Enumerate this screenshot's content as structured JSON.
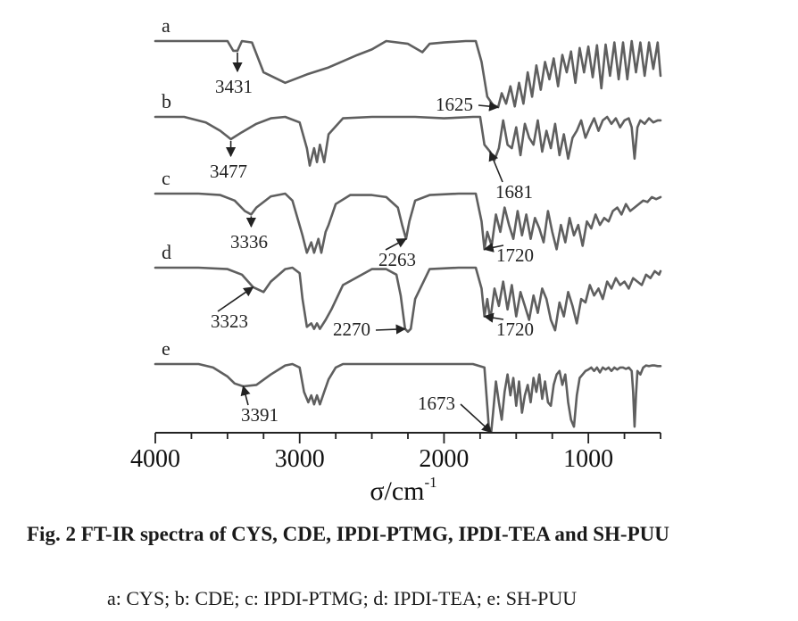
{
  "chart_data": {
    "type": "line",
    "xlabel": "σ/cm",
    "xlabel_superscript": "-1",
    "x_reversed": true,
    "xlim": [
      4000,
      500
    ],
    "x_ticks": [
      4000,
      3000,
      2000,
      1000
    ],
    "x_minor_step": 250,
    "y_axis_shown": false,
    "series": [
      {
        "name": "a",
        "baseline_offset": 4,
        "x": [
          4000,
          3600,
          3500,
          3460,
          3431,
          3400,
          3330,
          3250,
          3100,
          2950,
          2800,
          2600,
          2500,
          2400,
          2250,
          2150,
          2100,
          2000,
          1850,
          1780,
          1740,
          1700,
          1660,
          1625,
          1600,
          1570,
          1540,
          1510,
          1480,
          1450,
          1420,
          1390,
          1360,
          1330,
          1300,
          1270,
          1240,
          1210,
          1180,
          1150,
          1120,
          1090,
          1060,
          1030,
          1000,
          970,
          940,
          910,
          880,
          850,
          820,
          790,
          760,
          730,
          700,
          670,
          640,
          610,
          580,
          550,
          520,
          500
        ],
        "y": [
          1.0,
          1.0,
          1.0,
          0.86,
          0.86,
          1.0,
          0.98,
          0.55,
          0.4,
          0.52,
          0.62,
          0.8,
          0.88,
          1.0,
          0.96,
          0.84,
          0.96,
          0.98,
          1.0,
          1.0,
          0.7,
          0.2,
          0.08,
          0.05,
          0.25,
          0.1,
          0.35,
          0.06,
          0.4,
          0.1,
          0.55,
          0.2,
          0.65,
          0.3,
          0.7,
          0.45,
          0.75,
          0.35,
          0.8,
          0.55,
          0.85,
          0.4,
          0.9,
          0.55,
          0.92,
          0.48,
          0.94,
          0.32,
          0.95,
          0.5,
          0.98,
          0.45,
          0.98,
          0.45,
          1.0,
          0.55,
          0.98,
          0.5,
          0.98,
          0.6,
          0.98,
          0.5
        ]
      },
      {
        "name": "b",
        "baseline_offset": 3,
        "x": [
          4000,
          3800,
          3650,
          3550,
          3477,
          3400,
          3300,
          3200,
          3100,
          3000,
          2950,
          2930,
          2900,
          2880,
          2860,
          2830,
          2800,
          2700,
          2500,
          2200,
          2000,
          1800,
          1750,
          1720,
          1681,
          1650,
          1620,
          1590,
          1560,
          1530,
          1500,
          1470,
          1440,
          1410,
          1380,
          1350,
          1320,
          1290,
          1260,
          1230,
          1200,
          1170,
          1140,
          1110,
          1080,
          1050,
          1020,
          990,
          960,
          930,
          900,
          870,
          840,
          810,
          780,
          750,
          720,
          700,
          680,
          660,
          640,
          610,
          580,
          550,
          520,
          500
        ],
        "y": [
          1.0,
          1.0,
          0.92,
          0.8,
          0.68,
          0.78,
          0.9,
          0.98,
          1.0,
          0.92,
          0.55,
          0.3,
          0.55,
          0.35,
          0.6,
          0.35,
          0.75,
          0.98,
          1.0,
          1.0,
          0.98,
          1.0,
          1.0,
          0.6,
          0.5,
          0.38,
          0.55,
          0.95,
          0.6,
          0.55,
          0.85,
          0.45,
          0.9,
          0.7,
          0.6,
          0.95,
          0.5,
          0.8,
          0.55,
          0.9,
          0.45,
          0.75,
          0.4,
          0.7,
          0.8,
          0.95,
          0.7,
          0.85,
          0.98,
          0.8,
          0.95,
          1.0,
          0.9,
          0.98,
          0.85,
          0.95,
          0.98,
          0.85,
          0.4,
          0.85,
          0.95,
          0.9,
          0.98,
          0.92,
          0.95,
          0.95
        ]
      },
      {
        "name": "c",
        "baseline_offset": 2,
        "x": [
          4000,
          3700,
          3550,
          3450,
          3380,
          3336,
          3300,
          3200,
          3100,
          3050,
          2980,
          2950,
          2920,
          2900,
          2870,
          2850,
          2820,
          2800,
          2750,
          2650,
          2500,
          2400,
          2320,
          2290,
          2263,
          2240,
          2200,
          2100,
          1900,
          1780,
          1740,
          1720,
          1700,
          1670,
          1640,
          1610,
          1580,
          1550,
          1520,
          1490,
          1460,
          1430,
          1400,
          1370,
          1340,
          1310,
          1280,
          1250,
          1220,
          1190,
          1160,
          1130,
          1100,
          1070,
          1040,
          1010,
          980,
          950,
          920,
          890,
          860,
          830,
          800,
          770,
          740,
          710,
          680,
          650,
          620,
          590,
          560,
          530,
          500
        ],
        "y": [
          1.0,
          1.0,
          0.98,
          0.9,
          0.75,
          0.7,
          0.8,
          0.96,
          1.0,
          0.9,
          0.4,
          0.15,
          0.3,
          0.15,
          0.35,
          0.15,
          0.45,
          0.55,
          0.85,
          0.98,
          0.98,
          0.95,
          0.8,
          0.55,
          0.35,
          0.6,
          0.9,
          0.98,
          1.0,
          1.0,
          0.6,
          0.2,
          0.45,
          0.25,
          0.7,
          0.45,
          0.8,
          0.55,
          0.35,
          0.75,
          0.4,
          0.7,
          0.35,
          0.65,
          0.5,
          0.3,
          0.75,
          0.45,
          0.2,
          0.55,
          0.3,
          0.65,
          0.4,
          0.55,
          0.25,
          0.6,
          0.5,
          0.7,
          0.55,
          0.65,
          0.6,
          0.75,
          0.8,
          0.7,
          0.85,
          0.75,
          0.8,
          0.85,
          0.9,
          0.88,
          0.95,
          0.92,
          0.95
        ]
      },
      {
        "name": "d",
        "baseline_offset": 1,
        "x": [
          4000,
          3700,
          3500,
          3400,
          3323,
          3250,
          3200,
          3100,
          3050,
          3000,
          2980,
          2950,
          2920,
          2900,
          2880,
          2860,
          2820,
          2780,
          2700,
          2500,
          2400,
          2330,
          2300,
          2270,
          2250,
          2230,
          2200,
          2100,
          1900,
          1780,
          1740,
          1720,
          1700,
          1680,
          1650,
          1620,
          1590,
          1560,
          1530,
          1500,
          1470,
          1440,
          1410,
          1380,
          1350,
          1320,
          1290,
          1260,
          1230,
          1200,
          1170,
          1140,
          1110,
          1080,
          1050,
          1020,
          990,
          960,
          930,
          900,
          870,
          840,
          810,
          780,
          750,
          720,
          690,
          660,
          630,
          600,
          570,
          540,
          510,
          500
        ],
        "y": [
          1.0,
          1.0,
          0.98,
          0.9,
          0.72,
          0.65,
          0.8,
          0.98,
          1.0,
          0.92,
          0.55,
          0.15,
          0.2,
          0.12,
          0.2,
          0.12,
          0.25,
          0.4,
          0.75,
          0.98,
          0.98,
          0.9,
          0.6,
          0.12,
          0.08,
          0.12,
          0.55,
          0.98,
          1.0,
          1.0,
          0.7,
          0.3,
          0.55,
          0.25,
          0.7,
          0.45,
          0.8,
          0.4,
          0.75,
          0.3,
          0.65,
          0.45,
          0.25,
          0.6,
          0.35,
          0.7,
          0.55,
          0.25,
          0.1,
          0.5,
          0.3,
          0.65,
          0.45,
          0.2,
          0.55,
          0.5,
          0.75,
          0.6,
          0.7,
          0.55,
          0.8,
          0.7,
          0.85,
          0.75,
          0.8,
          0.7,
          0.85,
          0.8,
          0.75,
          0.9,
          0.85,
          0.95,
          0.9,
          0.95
        ]
      },
      {
        "name": "e",
        "baseline_offset": 0,
        "x": [
          4000,
          3700,
          3600,
          3500,
          3450,
          3391,
          3300,
          3200,
          3100,
          3050,
          3000,
          2970,
          2940,
          2920,
          2900,
          2880,
          2860,
          2830,
          2800,
          2750,
          2700,
          2500,
          2000,
          1800,
          1720,
          1700,
          1690,
          1673,
          1660,
          1640,
          1620,
          1600,
          1580,
          1560,
          1540,
          1520,
          1500,
          1480,
          1460,
          1440,
          1420,
          1400,
          1380,
          1360,
          1340,
          1320,
          1300,
          1280,
          1260,
          1240,
          1220,
          1200,
          1180,
          1160,
          1140,
          1120,
          1100,
          1080,
          1060,
          1040,
          1020,
          1000,
          980,
          960,
          940,
          920,
          900,
          880,
          860,
          840,
          820,
          800,
          780,
          760,
          740,
          720,
          700,
          690,
          680,
          670,
          660,
          640,
          620,
          600,
          580,
          560,
          540,
          520,
          500
        ],
        "y": [
          1.0,
          1.0,
          0.95,
          0.82,
          0.72,
          0.68,
          0.7,
          0.85,
          0.98,
          1.0,
          0.95,
          0.6,
          0.45,
          0.55,
          0.42,
          0.55,
          0.42,
          0.6,
          0.78,
          0.95,
          1.0,
          1.0,
          1.0,
          1.0,
          0.95,
          0.4,
          0.1,
          0.02,
          0.3,
          0.75,
          0.45,
          0.2,
          0.6,
          0.85,
          0.55,
          0.8,
          0.4,
          0.75,
          0.3,
          0.55,
          0.7,
          0.45,
          0.8,
          0.6,
          0.85,
          0.5,
          0.75,
          0.45,
          0.4,
          0.7,
          0.85,
          0.9,
          0.7,
          0.85,
          0.45,
          0.2,
          0.1,
          0.55,
          0.8,
          0.85,
          0.9,
          0.92,
          0.95,
          0.9,
          0.95,
          0.88,
          0.95,
          0.92,
          0.95,
          0.9,
          0.95,
          0.92,
          0.95,
          0.95,
          0.93,
          0.95,
          0.9,
          0.6,
          0.1,
          0.55,
          0.9,
          0.85,
          0.95,
          0.98,
          0.97,
          0.98,
          0.98,
          0.97,
          0.97
        ]
      }
    ],
    "annotations": [
      {
        "series": "a",
        "label": "3431",
        "x": 3431
      },
      {
        "series": "a",
        "label": "1625",
        "x": 1625
      },
      {
        "series": "b",
        "label": "3477",
        "x": 3477
      },
      {
        "series": "b",
        "label": "1681",
        "x": 1681
      },
      {
        "series": "c",
        "label": "3336",
        "x": 3336
      },
      {
        "series": "c",
        "label": "2263",
        "x": 2263
      },
      {
        "series": "c",
        "label": "1720",
        "x": 1720
      },
      {
        "series": "d",
        "label": "3323",
        "x": 3323
      },
      {
        "series": "d",
        "label": "2270",
        "x": 2270
      },
      {
        "series": "d",
        "label": "1720",
        "x": 1720
      },
      {
        "series": "e",
        "label": "3391",
        "x": 3391
      },
      {
        "series": "e",
        "label": "1673",
        "x": 1673
      }
    ]
  },
  "caption": {
    "title": "Fig. 2  FT-IR spectra of CYS, CDE, IPDI-PTMG, IPDI-TEA and SH-PUU",
    "legend": "a: CYS; b: CDE; c: IPDI-PTMG; d: IPDI-TEA; e: SH-PUU"
  }
}
